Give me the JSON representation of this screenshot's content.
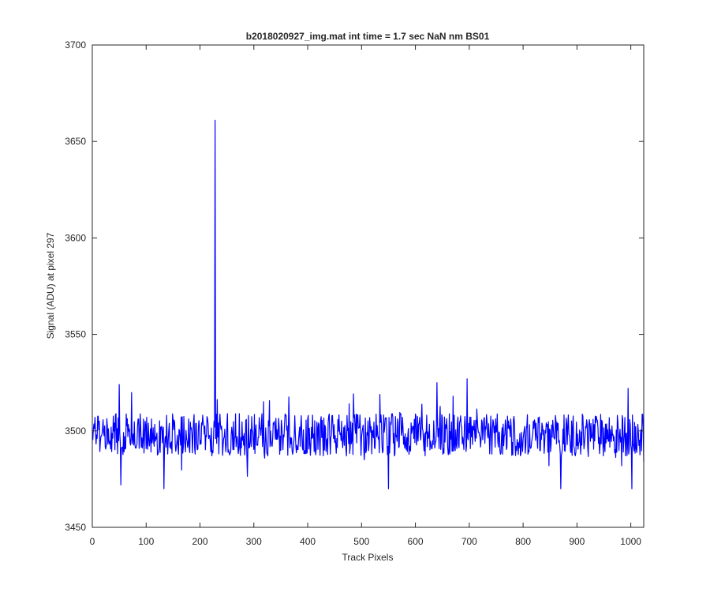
{
  "chart_data": {
    "type": "line",
    "title": "b2018020927_img.mat int time = 1.7 sec  NaN nm BS01",
    "xlabel": "Track Pixels",
    "ylabel": "Signal (ADU) at pixel 297",
    "xlim": [
      0,
      1024
    ],
    "ylim": [
      3450,
      3700
    ],
    "xticks": [
      0,
      100,
      200,
      300,
      400,
      500,
      600,
      700,
      800,
      900,
      1000
    ],
    "yticks": [
      3450,
      3500,
      3550,
      3600,
      3650,
      3700
    ],
    "grid": false,
    "legend": "none",
    "series": [
      {
        "color": "#0000ff",
        "baseline": 3498,
        "spike": {
          "x": 228,
          "y": 3661
        },
        "extremes": [
          {
            "x": 5,
            "y": 3507
          },
          {
            "x": 50,
            "y": 3524
          },
          {
            "x": 53,
            "y": 3472
          },
          {
            "x": 133,
            "y": 3470
          },
          {
            "x": 550,
            "y": 3470
          },
          {
            "x": 640,
            "y": 3525
          },
          {
            "x": 696,
            "y": 3527
          },
          {
            "x": 870,
            "y": 3470
          },
          {
            "x": 995,
            "y": 3522
          },
          {
            "x": 1002,
            "y": 3470
          },
          {
            "x": 1024,
            "y": 3484
          }
        ]
      }
    ]
  }
}
